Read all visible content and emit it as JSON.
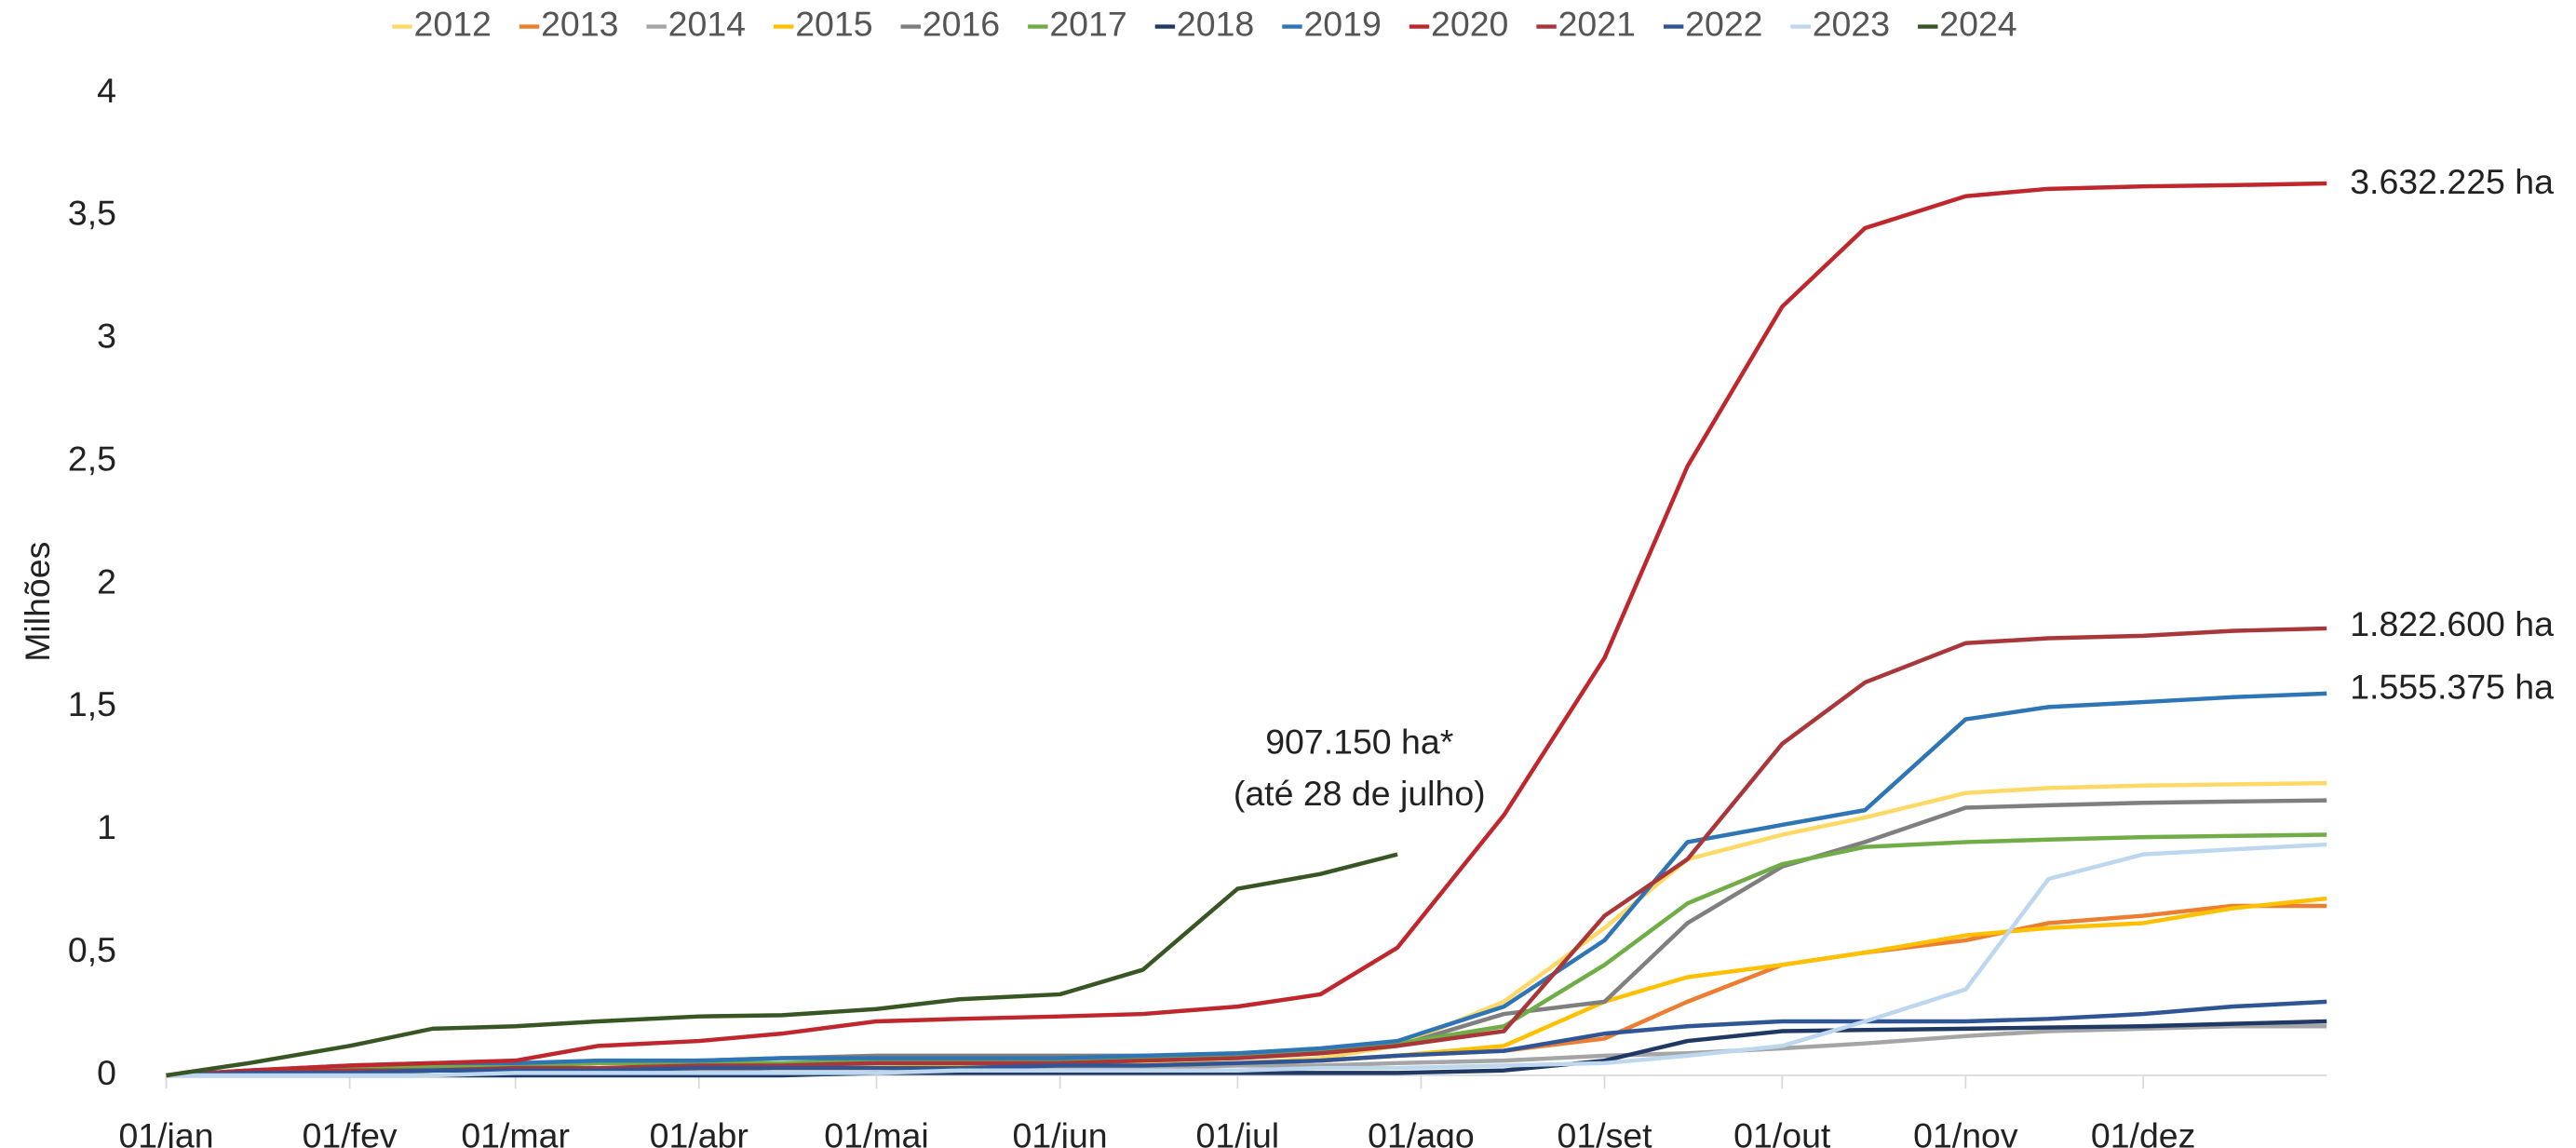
{
  "chart_data": {
    "type": "line",
    "y_label": "Milhões",
    "x": [
      1,
      15,
      32,
      46,
      60,
      74,
      91,
      105,
      121,
      135,
      152,
      166,
      182,
      196,
      209,
      227,
      244,
      258,
      274,
      288,
      305,
      319,
      335,
      350,
      366
    ],
    "xlim": [
      1,
      366
    ],
    "xticks": [
      {
        "value": 1,
        "label": "01/jan"
      },
      {
        "value": 32,
        "label": "01/fev"
      },
      {
        "value": 60,
        "label": "01/mar"
      },
      {
        "value": 91,
        "label": "01/abr"
      },
      {
        "value": 121,
        "label": "01/mai"
      },
      {
        "value": 152,
        "label": "01/jun"
      },
      {
        "value": 182,
        "label": "01/jul"
      },
      {
        "value": 213,
        "label": "01/ago"
      },
      {
        "value": 244,
        "label": "01/set"
      },
      {
        "value": 274,
        "label": "01/out"
      },
      {
        "value": 305,
        "label": "01/nov"
      },
      {
        "value": 335,
        "label": "01/dez"
      }
    ],
    "ylim": [
      0,
      4
    ],
    "yticks": [
      0,
      {
        "value": 0.5,
        "label": "0,5"
      },
      1,
      {
        "value": 1.5,
        "label": "1,5"
      },
      2,
      {
        "value": 2.5,
        "label": "2,5"
      },
      3,
      {
        "value": 3.5,
        "label": "3,5"
      },
      4
    ],
    "legend": "top",
    "series": [
      {
        "name": "2012",
        "color": "#ffd966",
        "values": [
          0,
          0.01,
          0.02,
          0.02,
          0.03,
          0.03,
          0.03,
          0.04,
          0.04,
          0.04,
          0.04,
          0.05,
          0.05,
          0.07,
          0.12,
          0.3,
          0.6,
          0.88,
          0.98,
          1.05,
          1.15,
          1.17,
          1.18,
          1.185,
          1.19
        ]
      },
      {
        "name": "2013",
        "color": "#ed7d31",
        "values": [
          0,
          0.01,
          0.01,
          0.02,
          0.02,
          0.02,
          0.03,
          0.03,
          0.03,
          0.03,
          0.04,
          0.04,
          0.05,
          0.06,
          0.08,
          0.1,
          0.15,
          0.3,
          0.45,
          0.5,
          0.55,
          0.62,
          0.65,
          0.69,
          0.69
        ]
      },
      {
        "name": "2014",
        "color": "#a5a5a5",
        "values": [
          0,
          0.01,
          0.01,
          0.02,
          0.02,
          0.02,
          0.02,
          0.03,
          0.03,
          0.03,
          0.03,
          0.03,
          0.04,
          0.04,
          0.05,
          0.06,
          0.08,
          0.09,
          0.11,
          0.13,
          0.16,
          0.18,
          0.19,
          0.2,
          0.2
        ]
      },
      {
        "name": "2015",
        "color": "#ffc000",
        "values": [
          0,
          0.01,
          0.01,
          0.02,
          0.02,
          0.02,
          0.03,
          0.03,
          0.03,
          0.04,
          0.04,
          0.04,
          0.05,
          0.06,
          0.08,
          0.12,
          0.3,
          0.4,
          0.45,
          0.5,
          0.57,
          0.6,
          0.62,
          0.68,
          0.72
        ]
      },
      {
        "name": "2016",
        "color": "#7f7f7f",
        "values": [
          0,
          0.01,
          0.02,
          0.03,
          0.04,
          0.05,
          0.06,
          0.07,
          0.08,
          0.08,
          0.08,
          0.08,
          0.08,
          0.09,
          0.12,
          0.25,
          0.3,
          0.62,
          0.85,
          0.95,
          1.09,
          1.1,
          1.11,
          1.115,
          1.12
        ]
      },
      {
        "name": "2017",
        "color": "#70ad47",
        "values": [
          0,
          0.02,
          0.03,
          0.04,
          0.04,
          0.05,
          0.05,
          0.05,
          0.06,
          0.06,
          0.06,
          0.07,
          0.08,
          0.1,
          0.13,
          0.2,
          0.45,
          0.7,
          0.86,
          0.93,
          0.95,
          0.96,
          0.97,
          0.975,
          0.98
        ]
      },
      {
        "name": "2018",
        "color": "#203864",
        "values": [
          0,
          0,
          0,
          0,
          0,
          0,
          0,
          0,
          0.01,
          0.01,
          0.01,
          0.01,
          0.01,
          0.01,
          0.01,
          0.02,
          0.06,
          0.14,
          0.18,
          0.185,
          0.19,
          0.195,
          0.2,
          0.21,
          0.22
        ]
      },
      {
        "name": "2019",
        "color": "#2e75b6",
        "values": [
          0,
          0.02,
          0.04,
          0.05,
          0.05,
          0.06,
          0.06,
          0.07,
          0.07,
          0.07,
          0.07,
          0.08,
          0.09,
          0.11,
          0.14,
          0.28,
          0.55,
          0.95,
          1.02,
          1.08,
          1.45,
          1.5,
          1.52,
          1.54,
          1.555
        ]
      },
      {
        "name": "2020",
        "color": "#c0272d",
        "values": [
          0,
          0.02,
          0.04,
          0.05,
          0.06,
          0.12,
          0.14,
          0.17,
          0.22,
          0.23,
          0.24,
          0.25,
          0.28,
          0.33,
          0.52,
          1.06,
          1.7,
          2.48,
          3.13,
          3.45,
          3.58,
          3.61,
          3.62,
          3.625,
          3.632
        ]
      },
      {
        "name": "2021",
        "color": "#a9373a",
        "values": [
          0,
          0.01,
          0.02,
          0.02,
          0.03,
          0.03,
          0.04,
          0.04,
          0.05,
          0.05,
          0.05,
          0.06,
          0.07,
          0.09,
          0.12,
          0.18,
          0.65,
          0.88,
          1.35,
          1.6,
          1.76,
          1.78,
          1.79,
          1.81,
          1.82
        ]
      },
      {
        "name": "2022",
        "color": "#2f5597",
        "values": [
          0,
          0.01,
          0.01,
          0.02,
          0.02,
          0.02,
          0.03,
          0.03,
          0.03,
          0.03,
          0.04,
          0.04,
          0.05,
          0.06,
          0.08,
          0.1,
          0.17,
          0.2,
          0.22,
          0.22,
          0.22,
          0.23,
          0.25,
          0.28,
          0.3
        ]
      },
      {
        "name": "2023",
        "color": "#bdd7ee",
        "values": [
          0,
          0,
          0,
          0,
          0.01,
          0.01,
          0.01,
          0.01,
          0.01,
          0.02,
          0.02,
          0.02,
          0.02,
          0.03,
          0.03,
          0.04,
          0.05,
          0.08,
          0.12,
          0.22,
          0.35,
          0.8,
          0.9,
          0.92,
          0.94
        ]
      },
      {
        "name": "2024",
        "color": "#375623",
        "values": [
          0,
          0.05,
          0.12,
          0.19,
          0.2,
          0.22,
          0.24,
          0.245,
          0.27,
          0.31,
          0.33,
          0.43,
          0.76,
          0.82,
          0.9,
          null,
          null,
          null,
          null,
          null,
          null,
          null,
          null,
          null,
          null
        ]
      }
    ],
    "annotations": [
      "3.632.225 ha",
      "1.822.600 ha",
      "1.555.375 ha",
      "907.150 ha*",
      "(até 28 de julho)"
    ]
  }
}
